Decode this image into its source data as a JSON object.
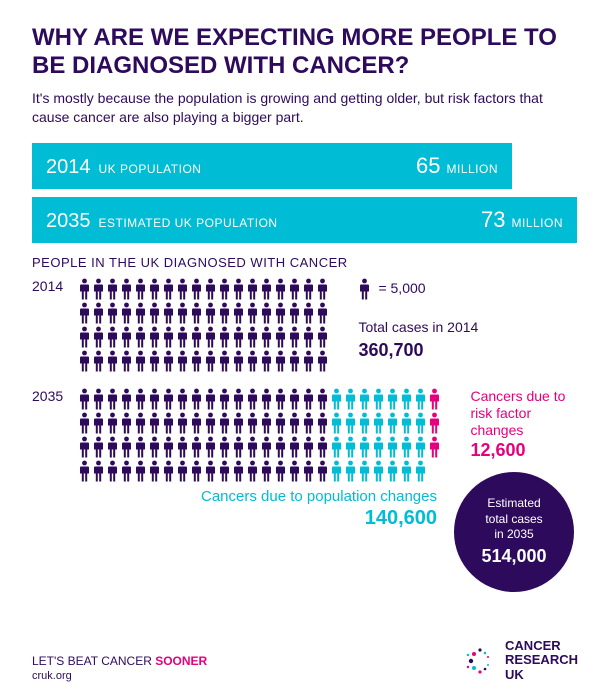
{
  "title": "WHY ARE WE EXPECTING MORE PEOPLE TO BE DIAGNOSED WITH CANCER?",
  "subhead": "It's mostly because the population is growing and getting older, but risk factors that cause cancer are also playing a bigger part.",
  "bands": [
    {
      "year": "2014",
      "label": "UK POPULATION",
      "num": "65",
      "unit": "MILLION",
      "width": "narrow"
    },
    {
      "year": "2035",
      "label": "ESTIMATED UK POPULATION",
      "num": "73",
      "unit": "MILLION",
      "width": "wide"
    }
  ],
  "section_label": "PEOPLE IN THE UK DIAGNOSED WITH CANCER",
  "legend_equals": "= 5,000",
  "row2014": {
    "year": "2014",
    "rows": 4,
    "per_row": 18,
    "pattern": [
      [
        "dark",
        18
      ],
      [
        "dark",
        18
      ],
      [
        "dark",
        18
      ],
      [
        "dark",
        18
      ]
    ],
    "total_label": "Total cases in 2014",
    "total_value": "360,700"
  },
  "row2035": {
    "year": "2035",
    "rows": 4,
    "per_row": 26,
    "pattern": [
      [
        "dark",
        18,
        "cyan",
        7,
        "pink",
        1
      ],
      [
        "dark",
        18,
        "cyan",
        7,
        "pink",
        1
      ],
      [
        "dark",
        18,
        "cyan",
        7,
        "pink",
        1
      ],
      [
        "dark",
        18,
        "cyan",
        7
      ]
    ],
    "pop_label": "Cancers due to population changes",
    "pop_value": "140,600",
    "risk_label": "Cancers due to risk factor changes",
    "risk_value": "12,600"
  },
  "circle": {
    "l1": "Estimated",
    "l2": "total cases",
    "l3": "in 2035",
    "value": "514,000"
  },
  "footer": {
    "line1a": "LET'S BEAT CANCER ",
    "line1b": "SOONER",
    "url": "cruk.org"
  },
  "logo": {
    "l1": "CANCER",
    "l2": "RESEARCH",
    "l3": "UK"
  },
  "colors": {
    "dark": "#2e0a5c",
    "cyan": "#00bcd4",
    "pink": "#e6007e"
  }
}
